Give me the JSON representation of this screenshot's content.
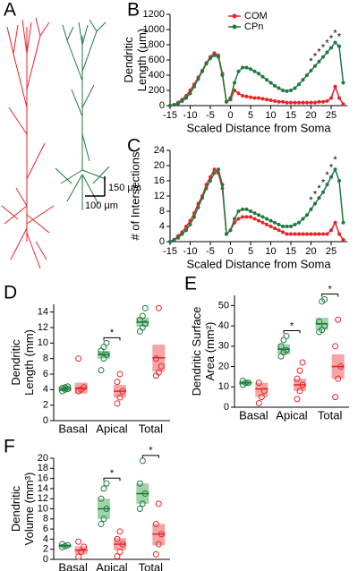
{
  "panel_a": {
    "label": "A",
    "scale_labels": [
      "150 μm",
      "100 μm"
    ]
  },
  "chart_data": [
    {
      "type": "line",
      "panel": "B",
      "ylabel": [
        "Dendritic",
        "Length (μm)"
      ],
      "xlabel": "Scaled Distance from Soma",
      "xlim": [
        -15,
        29
      ],
      "xticks": [
        -15,
        -10,
        -5,
        0,
        5,
        10,
        15,
        20,
        25
      ],
      "ylim": [
        0,
        1200
      ],
      "yticks": [
        0,
        200,
        400,
        600,
        800,
        1000,
        1200
      ],
      "legend": "top-center",
      "x": [
        -15,
        -14,
        -13,
        -12,
        -11,
        -10,
        -9,
        -8,
        -7,
        -6,
        -5,
        -4,
        -3,
        -2,
        -1,
        0,
        1,
        2,
        3,
        4,
        5,
        6,
        7,
        8,
        9,
        10,
        11,
        12,
        13,
        14,
        15,
        16,
        17,
        18,
        19,
        20,
        21,
        22,
        23,
        24,
        25,
        26,
        27,
        28
      ],
      "series": [
        {
          "name": "COM",
          "color": "#e8232a",
          "values": [
            0,
            10,
            40,
            80,
            130,
            200,
            280,
            370,
            460,
            560,
            640,
            690,
            660,
            420,
            50,
            80,
            200,
            160,
            130,
            120,
            110,
            100,
            100,
            90,
            80,
            70,
            60,
            50,
            50,
            40,
            40,
            40,
            40,
            40,
            40,
            40,
            40,
            50,
            50,
            60,
            100,
            250,
            100,
            20
          ]
        },
        {
          "name": "CPn",
          "color": "#1f7a3f",
          "values": [
            0,
            10,
            30,
            60,
            100,
            160,
            250,
            350,
            450,
            550,
            620,
            660,
            640,
            400,
            50,
            100,
            300,
            450,
            500,
            500,
            480,
            450,
            420,
            380,
            340,
            300,
            260,
            230,
            200,
            190,
            200,
            230,
            280,
            340,
            400,
            460,
            520,
            580,
            640,
            700,
            760,
            830,
            780,
            300
          ]
        }
      ],
      "significance": {
        "label": "*",
        "x": [
          20,
          21,
          22,
          23,
          24,
          25,
          26,
          27
        ]
      }
    },
    {
      "type": "line",
      "panel": "C",
      "ylabel": [
        "# of Intersections"
      ],
      "xlabel": "Scaled Distance from Soma",
      "xlim": [
        -15,
        29
      ],
      "xticks": [
        -15,
        -10,
        -5,
        0,
        5,
        10,
        15,
        20,
        25
      ],
      "ylim": [
        0,
        24
      ],
      "yticks": [
        0,
        4,
        8,
        12,
        16,
        20,
        24
      ],
      "x": [
        -15,
        -14,
        -13,
        -12,
        -11,
        -10,
        -9,
        -8,
        -7,
        -6,
        -5,
        -4,
        -3,
        -2,
        -1,
        0,
        1,
        2,
        3,
        4,
        5,
        6,
        7,
        8,
        9,
        10,
        11,
        12,
        13,
        14,
        15,
        16,
        17,
        18,
        19,
        20,
        21,
        22,
        23,
        24,
        25,
        26,
        27,
        28
      ],
      "series": [
        {
          "name": "COM",
          "color": "#e8232a",
          "values": [
            0,
            0.5,
            1.5,
            2.5,
            4,
            5.5,
            7.5,
            10,
            12,
            15,
            17,
            19,
            18,
            14,
            2,
            3,
            5,
            6,
            6.5,
            6.5,
            6.5,
            6,
            5.5,
            5,
            4.5,
            4,
            3.5,
            3,
            2.5,
            2,
            2,
            2,
            2,
            2,
            2,
            2,
            2,
            2,
            2,
            2,
            3,
            5,
            2,
            0.5
          ]
        },
        {
          "name": "CPn",
          "color": "#1f7a3f",
          "values": [
            0,
            0.5,
            1,
            2,
            3,
            4.5,
            6.5,
            9,
            11.5,
            14,
            16,
            18,
            19,
            15,
            2,
            3,
            6,
            8,
            8.5,
            8.5,
            8,
            7.5,
            7,
            6.5,
            6,
            5.5,
            5,
            4.5,
            4,
            4,
            4,
            4.5,
            5,
            6,
            7,
            8.5,
            10,
            11.5,
            13,
            15,
            17,
            19,
            16,
            5
          ]
        }
      ],
      "significance": {
        "label": "*",
        "x": [
          20,
          21,
          22,
          23,
          24,
          25,
          26
        ]
      }
    },
    {
      "type": "strip",
      "panel": "D",
      "ylabel": [
        "Dendritic",
        "Length (mm)"
      ],
      "ylim": [
        0,
        15
      ],
      "yticks": [
        0,
        2,
        4,
        6,
        8,
        10,
        12,
        14
      ],
      "groups": [
        "Basal",
        "Apical",
        "Total"
      ],
      "series": [
        {
          "name": "CPn",
          "color": "#1f7a3f",
          "fill": "#9fd3a8",
          "mean": [
            4.1,
            8.5,
            12.7
          ],
          "box_low": [
            3.8,
            8.0,
            12.1
          ],
          "box_high": [
            4.4,
            9.0,
            13.3
          ],
          "points": [
            [
              3.8,
              4.0,
              4.1,
              4.2,
              4.3,
              4.4
            ],
            [
              6.5,
              8.0,
              8.5,
              9.0,
              9.5,
              10.0
            ],
            [
              11.5,
              12.0,
              12.5,
              13.0,
              13.5,
              14.5
            ]
          ]
        },
        {
          "name": "COM",
          "color": "#e8232a",
          "fill": "#f4a5a5",
          "mean": [
            4.2,
            3.8,
            8.1
          ],
          "box_low": [
            3.5,
            3.0,
            6.3
          ],
          "box_high": [
            4.9,
            4.6,
            9.8
          ],
          "points": [
            [
              3.8,
              4.0,
              4.3,
              8.0
            ],
            [
              2.2,
              3.0,
              3.8,
              5.0,
              6.0
            ],
            [
              5.8,
              6.2,
              7.0,
              8.0,
              14.5
            ]
          ]
        }
      ],
      "significance": {
        "label": "*",
        "at": [
          "Apical"
        ]
      }
    },
    {
      "type": "strip",
      "panel": "E",
      "ylabel": [
        "Dendritic Surface",
        "Area (mm²)"
      ],
      "ylim": [
        0,
        55
      ],
      "yticks": [
        0,
        10,
        20,
        30,
        40,
        50
      ],
      "groups": [
        "Basal",
        "Apical",
        "Total"
      ],
      "series": [
        {
          "name": "CPn",
          "color": "#1f7a3f",
          "fill": "#9fd3a8",
          "mean": [
            12,
            28.5,
            41
          ],
          "box_low": [
            11,
            26,
            38
          ],
          "box_high": [
            13,
            31,
            44
          ],
          "points": [
            [
              11,
              12,
              12,
              13
            ],
            [
              25,
              27,
              28,
              30,
              33,
              35
            ],
            [
              37,
              38,
              40,
              42,
              52,
              53
            ]
          ]
        },
        {
          "name": "COM",
          "color": "#e8232a",
          "fill": "#f4a5a5",
          "mean": [
            9,
            11,
            20
          ],
          "box_low": [
            5,
            8,
            14
          ],
          "box_high": [
            12,
            14,
            26
          ],
          "points": [
            [
              2,
              5,
              8,
              12
            ],
            [
              4,
              8,
              11,
              14,
              18,
              22
            ],
            [
              5,
              14,
              20,
              30,
              43
            ]
          ]
        }
      ],
      "significance": {
        "label": "*",
        "at": [
          "Apical",
          "Total"
        ]
      }
    },
    {
      "type": "strip",
      "panel": "F",
      "ylabel": [
        "Dendritic",
        "Volume (mm³)"
      ],
      "ylim": [
        0,
        20
      ],
      "yticks": [
        0,
        2,
        4,
        6,
        8,
        10,
        12,
        14,
        16,
        18,
        20
      ],
      "groups": [
        "Basal",
        "Apical",
        "Total"
      ],
      "series": [
        {
          "name": "CPn",
          "color": "#1f7a3f",
          "fill": "#9fd3a8",
          "mean": [
            2.7,
            10,
            13
          ],
          "box_low": [
            2.4,
            8,
            11
          ],
          "box_high": [
            3.0,
            12,
            15
          ],
          "points": [
            [
              2.4,
              2.6,
              2.8,
              3.0
            ],
            [
              7,
              8,
              10,
              12,
              14,
              15
            ],
            [
              10,
              11,
              13,
              15,
              19.5
            ]
          ]
        },
        {
          "name": "COM",
          "color": "#e8232a",
          "fill": "#f4a5a5",
          "mean": [
            1.8,
            3,
            5
          ],
          "box_low": [
            1,
            1.8,
            2.8
          ],
          "box_high": [
            2.6,
            4.2,
            7
          ],
          "points": [
            [
              0.5,
              1.5,
              2.5,
              3.5
            ],
            [
              0.6,
              1.5,
              3,
              4,
              5.5
            ],
            [
              1,
              3,
              5,
              7,
              11
            ]
          ]
        }
      ],
      "significance": {
        "label": "*",
        "at": [
          "Apical",
          "Total"
        ]
      }
    }
  ]
}
